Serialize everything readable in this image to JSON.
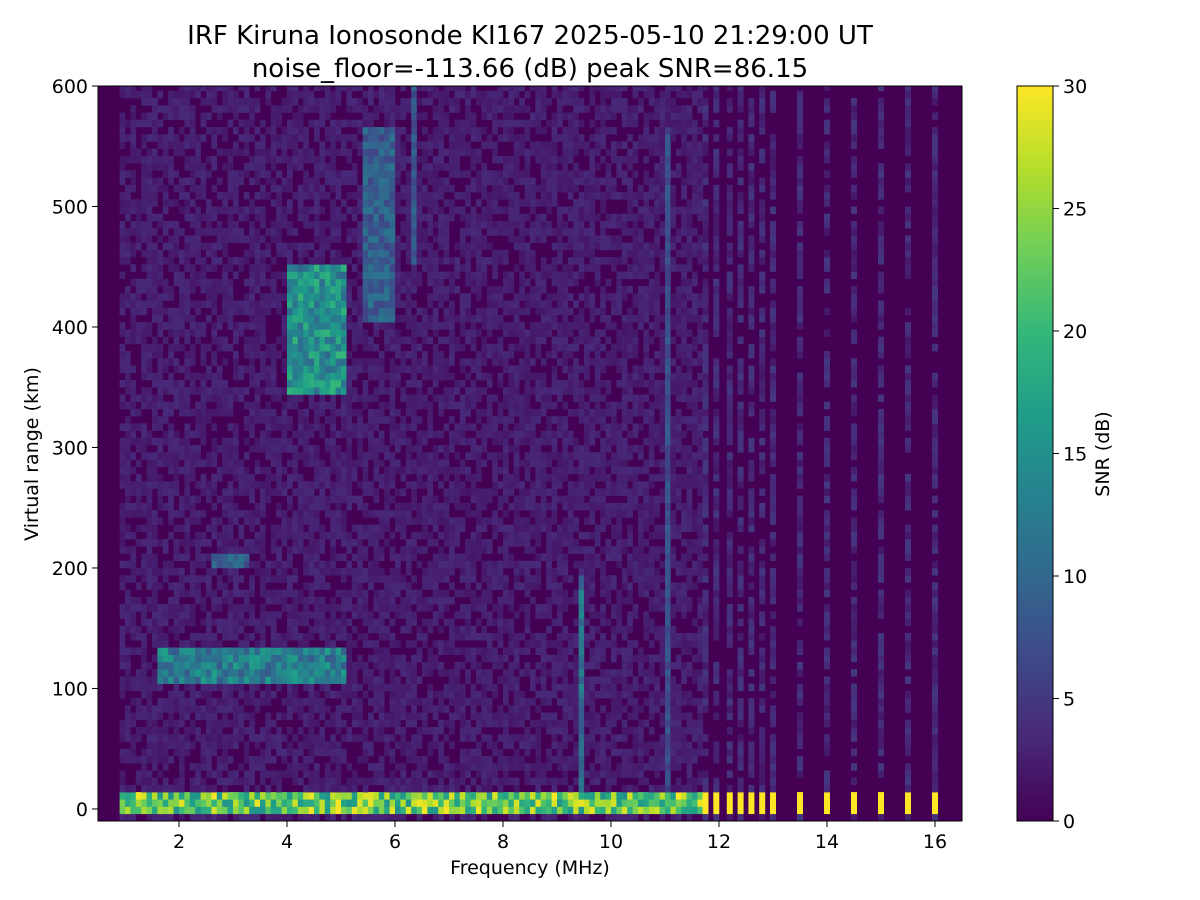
{
  "chart_data": {
    "type": "heatmap",
    "title": "IRF Kiruna Ionosonde KI167 2025-05-10 21:29:00  UT",
    "subtitle": "noise_floor=-113.66 (dB) peak SNR=86.15",
    "xlabel": "Frequency (MHz)",
    "ylabel": "Virtual range (km)",
    "xlim": [
      0.5,
      16.5
    ],
    "ylim": [
      -10,
      600
    ],
    "x_ticks": [
      2,
      4,
      6,
      8,
      10,
      12,
      14,
      16
    ],
    "x_tick_labels": [
      "2",
      "4",
      "6",
      "8",
      "10",
      "12",
      "14",
      "16"
    ],
    "y_ticks": [
      0,
      100,
      200,
      300,
      400,
      500,
      600
    ],
    "y_tick_labels": [
      "0",
      "100",
      "200",
      "300",
      "400",
      "500",
      "600"
    ],
    "colorbar": {
      "label": "SNR (dB)",
      "min": 0,
      "max": 30,
      "ticks": [
        0,
        5,
        10,
        15,
        20,
        25,
        30
      ],
      "tick_labels": [
        "0",
        "5",
        "10",
        "15",
        "20",
        "25",
        "30"
      ],
      "colormap": "viridis"
    },
    "data_freq_range_mhz": [
      0.9,
      16.1
    ],
    "background_snr_db": 1,
    "features": [
      {
        "name": "ground echo band",
        "x": [
          0.9,
          11.6
        ],
        "y": [
          -8,
          8
        ],
        "snr": 30
      },
      {
        "name": "E-layer trace",
        "x": [
          1.6,
          5.0
        ],
        "y": [
          100,
          130
        ],
        "snr": 17
      },
      {
        "name": "E-layer second hop",
        "x": [
          2.6,
          3.2
        ],
        "y": [
          200,
          210
        ],
        "snr": 12
      },
      {
        "name": "F-layer trace",
        "x": [
          4.0,
          5.0
        ],
        "y": [
          340,
          450
        ],
        "snr": 20
      },
      {
        "name": "F-layer high trace",
        "x": [
          5.4,
          5.9
        ],
        "y": [
          400,
          560
        ],
        "snr": 12
      },
      {
        "name": "interference line",
        "x": [
          9.4,
          9.4
        ],
        "y": [
          0,
          190
        ],
        "snr": 14
      },
      {
        "name": "interference line",
        "x": [
          11.0,
          11.0
        ],
        "y": [
          0,
          560
        ],
        "snr": 9
      },
      {
        "name": "interference line",
        "x": [
          6.3,
          6.3
        ],
        "y": [
          450,
          600
        ],
        "snr": 10
      }
    ],
    "discrete_channels_mhz": [
      11.75,
      11.95,
      12.2,
      12.4,
      12.6,
      12.8,
      13.0,
      13.5,
      14.0,
      14.5,
      15.0,
      15.5,
      16.0
    ]
  }
}
